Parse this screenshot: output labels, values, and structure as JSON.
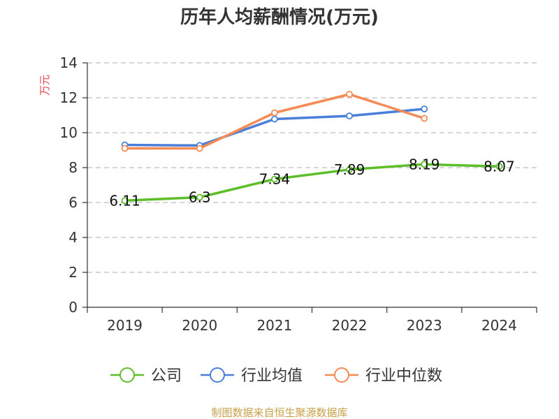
{
  "chart_data": {
    "type": "line",
    "title": "历年人均薪酬情况(万元)",
    "ylabel": "万元",
    "xlabel": "",
    "categories": [
      "2019",
      "2020",
      "2021",
      "2022",
      "2023",
      "2024"
    ],
    "ylim": [
      0,
      14
    ],
    "yticks": [
      0,
      2,
      4,
      6,
      8,
      10,
      12,
      14
    ],
    "grid": true,
    "legend_position": "bottom",
    "series": [
      {
        "name": "公司",
        "color": "#5cbf2a",
        "values": [
          6.11,
          6.3,
          7.34,
          7.89,
          8.19,
          8.07
        ],
        "labels": [
          "6.11",
          "6.3",
          "7.34",
          "7.89",
          "8.19",
          "8.07"
        ]
      },
      {
        "name": "行业均值",
        "color": "#4a7fd9",
        "values": [
          9.3,
          9.27,
          10.78,
          10.96,
          11.36,
          null
        ]
      },
      {
        "name": "行业中位数",
        "color": "#f48b55",
        "values": [
          9.1,
          9.1,
          11.14,
          12.2,
          10.82,
          null
        ]
      }
    ]
  },
  "source": "制图数据来自恒生聚源数据库"
}
